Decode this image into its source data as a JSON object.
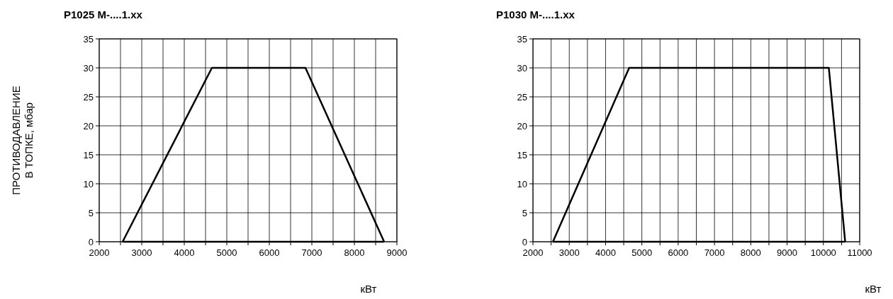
{
  "chart_data": [
    {
      "type": "line",
      "title": "P1025 M-....1.xx",
      "ylabel": "ПРОТИВОДАВЛЕНИЕ\nВ ТОПКЕ, мбар",
      "xlabel": "кВт",
      "series": [
        {
          "color": "#000000",
          "x": [
            2550,
            4650,
            6850,
            8700
          ],
          "values": [
            0,
            30,
            30,
            0
          ]
        },
        {
          "color": "#000000",
          "x": [
            2550,
            8700
          ],
          "values": [
            0,
            0
          ]
        }
      ],
      "xlim": [
        2000,
        9000
      ],
      "xticks": [
        2000,
        {
          "value": 2500,
          "label": null
        },
        3000,
        {
          "value": 3500,
          "label": null
        },
        4000,
        {
          "value": 4500,
          "label": null
        },
        5000,
        {
          "value": 5500,
          "label": null
        },
        6000,
        {
          "value": 6500,
          "label": null
        },
        7000,
        {
          "value": 7500,
          "label": null
        },
        8000,
        {
          "value": 8500,
          "label": null
        },
        9000
      ],
      "ylim": [
        0,
        35
      ],
      "yticks": [
        0,
        5,
        10,
        15,
        20,
        25,
        30,
        35
      ],
      "grid": true,
      "marker": "none",
      "line_style": "solid"
    },
    {
      "type": "line",
      "title": "P1030 M-....1.xx",
      "xlabel": "кВт",
      "series": [
        {
          "color": "#000000",
          "x": [
            2550,
            4650,
            10150,
            10600
          ],
          "values": [
            0,
            30,
            30,
            0
          ]
        },
        {
          "color": "#000000",
          "x": [
            2550,
            10600
          ],
          "values": [
            0,
            0
          ]
        }
      ],
      "xlim": [
        2000,
        11000
      ],
      "xticks": [
        2000,
        {
          "value": 2500,
          "label": null
        },
        3000,
        {
          "value": 3500,
          "label": null
        },
        4000,
        {
          "value": 4500,
          "label": null
        },
        5000,
        {
          "value": 5500,
          "label": null
        },
        6000,
        {
          "value": 6500,
          "label": null
        },
        7000,
        {
          "value": 7500,
          "label": null
        },
        8000,
        {
          "value": 8500,
          "label": null
        },
        9000,
        {
          "value": 9500,
          "label": null
        },
        10000,
        {
          "value": 10500,
          "label": null
        },
        11000
      ],
      "ylim": [
        0,
        35
      ],
      "yticks": [
        0,
        5,
        10,
        15,
        20,
        25,
        30,
        35
      ],
      "grid": true,
      "marker": "none",
      "line_style": "solid"
    }
  ]
}
